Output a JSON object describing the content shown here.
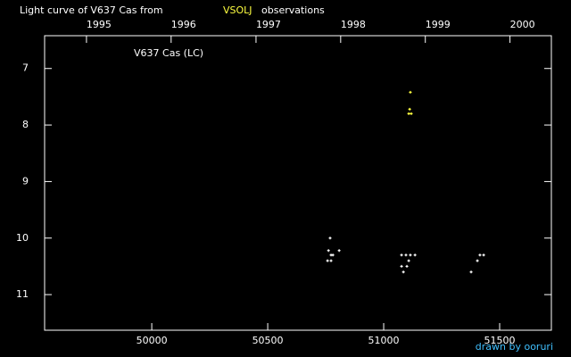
{
  "chart_data": {
    "type": "scatter",
    "title": "Light curve of V637 Cas from",
    "title_source": "VSOLJ",
    "title_source_color": "#ffff40",
    "title_end": "observations",
    "annotation": "V637 Cas (LC)",
    "credit": "drawn by ooruri",
    "credit_color": "#40c0ff",
    "xlim": [
      49538,
      51723
    ],
    "xticks": [
      50000,
      50500,
      51000,
      51500
    ],
    "x2ticks": [
      {
        "value": 49718.5,
        "label": "1995"
      },
      {
        "value": 50083.5,
        "label": "1996"
      },
      {
        "value": 50449.5,
        "label": "1997"
      },
      {
        "value": 50814.5,
        "label": "1998"
      },
      {
        "value": 51179.5,
        "label": "1999"
      },
      {
        "value": 51544.5,
        "label": "2000"
      }
    ],
    "ylim": [
      6.42,
      11.63
    ],
    "y_inverted": true,
    "yticks": [
      7,
      8,
      9,
      10,
      11
    ],
    "series": [
      {
        "color": "#ffffff",
        "x": [
          50769,
          50762,
          50773,
          50781,
          50758,
          50773,
          50808,
          51077,
          51096,
          51115,
          51135,
          51077,
          51100,
          51108,
          51085,
          51377,
          51404,
          51415,
          51431
        ],
        "values": [
          10.0,
          10.22,
          10.3,
          10.3,
          10.4,
          10.4,
          10.22,
          10.3,
          10.3,
          10.3,
          10.3,
          10.5,
          10.5,
          10.4,
          10.6,
          10.6,
          10.4,
          10.3,
          10.3
        ]
      },
      {
        "color": "#ffff40",
        "x": [
          51115,
          51112,
          51108,
          51119
        ],
        "values": [
          7.42,
          7.72,
          7.8,
          7.8
        ]
      }
    ]
  }
}
